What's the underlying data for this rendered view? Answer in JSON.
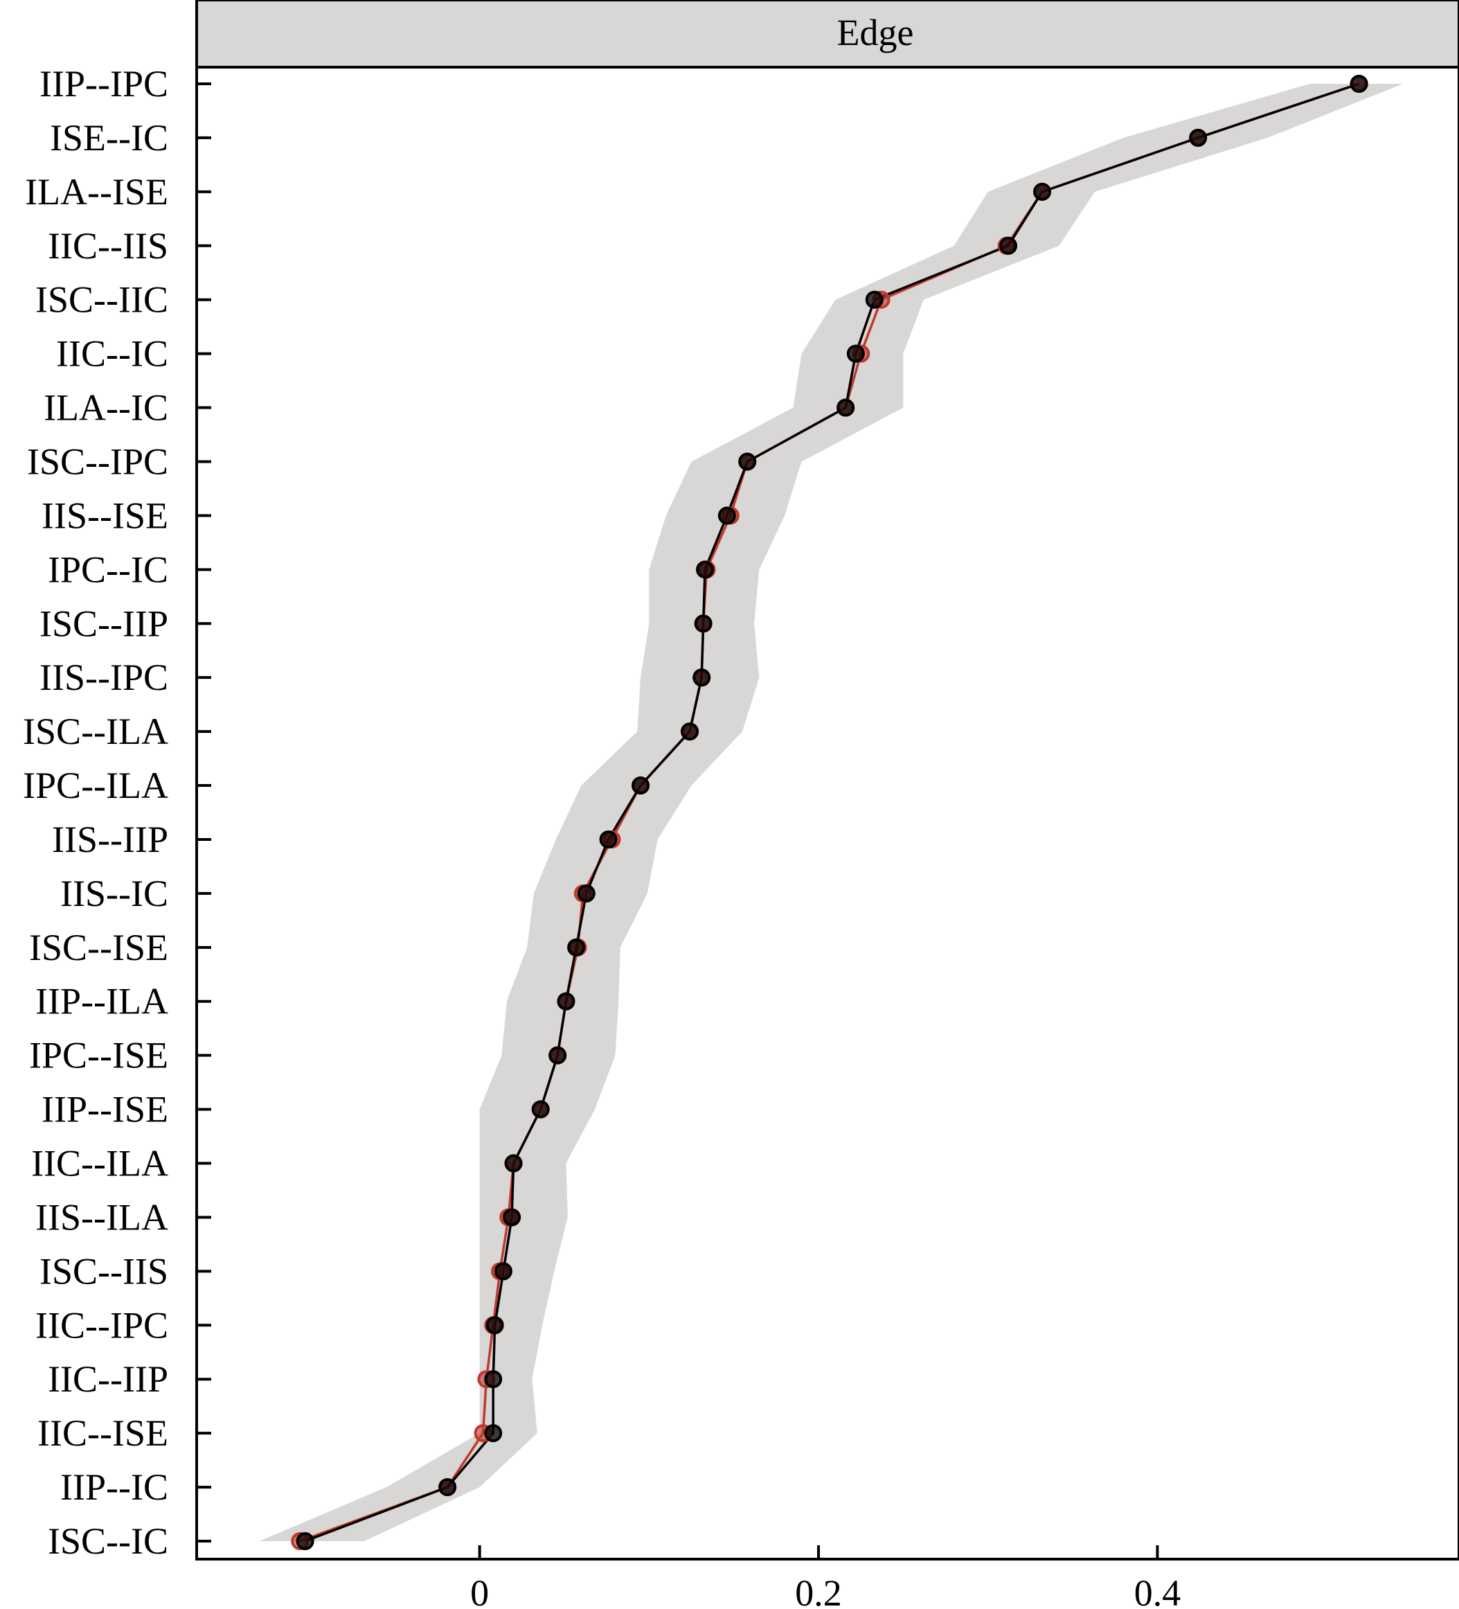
{
  "chart_data": {
    "type": "line",
    "orientation": "horizontal",
    "panel_title": "Edge",
    "categories": [
      "IIP--IPC",
      "ISE--IC",
      "ILA--ISE",
      "IIC--IIS",
      "ISC--IIC",
      "IIC--IC",
      "ILA--IC",
      "ISC--IPC",
      "IIS--ISE",
      "IPC--IC",
      "ISC--IIP",
      "IIS--IPC",
      "ISC--ILA",
      "IPC--ILA",
      "IIS--IIP",
      "IIS--IC",
      "ISC--ISE",
      "IIP--ILA",
      "IPC--ISE",
      "IIP--ISE",
      "IIC--ILA",
      "IIS--ILA",
      "ISC--IIS",
      "IIC--IPC",
      "IIC--IIP",
      "IIC--ISE",
      "IIP--IC",
      "ISC--IC"
    ],
    "series": [
      {
        "role": "sample",
        "color": "#000000",
        "values": [
          0.519,
          0.424,
          0.332,
          0.312,
          0.233,
          0.222,
          0.216,
          0.158,
          0.146,
          0.133,
          0.132,
          0.131,
          0.124,
          0.095,
          0.076,
          0.063,
          0.057,
          0.051,
          0.046,
          0.036,
          0.02,
          0.019,
          0.014,
          0.009,
          0.008,
          0.008,
          -0.019,
          -0.103
        ]
      },
      {
        "role": "bootstrap-mean",
        "color": "#c0392b",
        "values": [
          0.519,
          0.424,
          0.332,
          0.311,
          0.237,
          0.225,
          0.216,
          0.158,
          0.148,
          0.134,
          0.132,
          0.131,
          0.124,
          0.095,
          0.078,
          0.061,
          0.058,
          0.051,
          0.046,
          0.036,
          0.02,
          0.017,
          0.012,
          0.008,
          0.004,
          0.002,
          -0.019,
          -0.106
        ]
      }
    ],
    "ci": {
      "color": "#d9d6d6",
      "lower": [
        0.49,
        0.38,
        0.3,
        0.28,
        0.21,
        0.19,
        0.185,
        0.125,
        0.11,
        0.1,
        0.1,
        0.095,
        0.093,
        0.06,
        0.045,
        0.032,
        0.028,
        0.016,
        0.013,
        0.0,
        0.0,
        0.0,
        0.0,
        0.0,
        0.0,
        0.0,
        -0.055,
        -0.13
      ],
      "upper": [
        0.545,
        0.465,
        0.363,
        0.342,
        0.262,
        0.25,
        0.25,
        0.19,
        0.18,
        0.165,
        0.162,
        0.165,
        0.155,
        0.125,
        0.105,
        0.099,
        0.083,
        0.082,
        0.08,
        0.068,
        0.051,
        0.052,
        0.044,
        0.037,
        0.031,
        0.034,
        0.0,
        -0.068
      ]
    },
    "xlim": [
      -0.167,
      0.578
    ],
    "xticks": [
      0,
      0.2,
      0.4
    ],
    "xtick_labels": [
      "0",
      "0.2",
      "0.4"
    ],
    "xlabel": "",
    "ylabel": "",
    "grid": false,
    "legend": "none"
  }
}
